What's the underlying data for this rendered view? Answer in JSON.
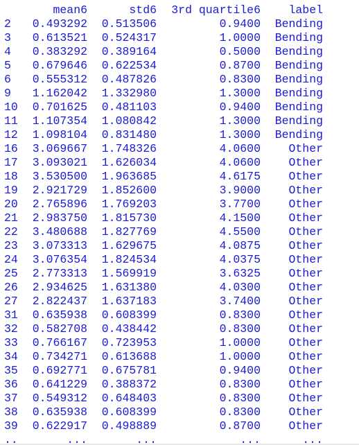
{
  "output": {
    "header": {
      "index": "",
      "mean6": "mean6",
      "std6": "std6",
      "q3": "3rd quartile6",
      "label": "label"
    },
    "rows": [
      {
        "index": "2",
        "mean6": "0.493292",
        "std6": "0.513506",
        "q3": "0.9400",
        "label": "Bending"
      },
      {
        "index": "3",
        "mean6": "0.613521",
        "std6": "0.524317",
        "q3": "1.0000",
        "label": "Bending"
      },
      {
        "index": "4",
        "mean6": "0.383292",
        "std6": "0.389164",
        "q3": "0.5000",
        "label": "Bending"
      },
      {
        "index": "5",
        "mean6": "0.679646",
        "std6": "0.622534",
        "q3": "0.8700",
        "label": "Bending"
      },
      {
        "index": "6",
        "mean6": "0.555312",
        "std6": "0.487826",
        "q3": "0.8300",
        "label": "Bending"
      },
      {
        "index": "9",
        "mean6": "1.162042",
        "std6": "1.332980",
        "q3": "1.3000",
        "label": "Bending"
      },
      {
        "index": "10",
        "mean6": "0.701625",
        "std6": "0.481103",
        "q3": "0.9400",
        "label": "Bending"
      },
      {
        "index": "11",
        "mean6": "1.107354",
        "std6": "1.080842",
        "q3": "1.3000",
        "label": "Bending"
      },
      {
        "index": "12",
        "mean6": "1.098104",
        "std6": "0.831480",
        "q3": "1.3000",
        "label": "Bending"
      },
      {
        "index": "16",
        "mean6": "3.069667",
        "std6": "1.748326",
        "q3": "4.0600",
        "label": "Other"
      },
      {
        "index": "17",
        "mean6": "3.093021",
        "std6": "1.626034",
        "q3": "4.0600",
        "label": "Other"
      },
      {
        "index": "18",
        "mean6": "3.530500",
        "std6": "1.963685",
        "q3": "4.6175",
        "label": "Other"
      },
      {
        "index": "19",
        "mean6": "2.921729",
        "std6": "1.852600",
        "q3": "3.9000",
        "label": "Other"
      },
      {
        "index": "20",
        "mean6": "2.765896",
        "std6": "1.769203",
        "q3": "3.7700",
        "label": "Other"
      },
      {
        "index": "21",
        "mean6": "2.983750",
        "std6": "1.815730",
        "q3": "4.1500",
        "label": "Other"
      },
      {
        "index": "22",
        "mean6": "3.480688",
        "std6": "1.827769",
        "q3": "4.5500",
        "label": "Other"
      },
      {
        "index": "23",
        "mean6": "3.073313",
        "std6": "1.629675",
        "q3": "4.0875",
        "label": "Other"
      },
      {
        "index": "24",
        "mean6": "3.076354",
        "std6": "1.824534",
        "q3": "4.0375",
        "label": "Other"
      },
      {
        "index": "25",
        "mean6": "2.773313",
        "std6": "1.569919",
        "q3": "3.6325",
        "label": "Other"
      },
      {
        "index": "26",
        "mean6": "2.934625",
        "std6": "1.631380",
        "q3": "4.0300",
        "label": "Other"
      },
      {
        "index": "27",
        "mean6": "2.822437",
        "std6": "1.637183",
        "q3": "3.7400",
        "label": "Other"
      },
      {
        "index": "31",
        "mean6": "0.635938",
        "std6": "0.608399",
        "q3": "0.8300",
        "label": "Other"
      },
      {
        "index": "32",
        "mean6": "0.582708",
        "std6": "0.438442",
        "q3": "0.8300",
        "label": "Other"
      },
      {
        "index": "33",
        "mean6": "0.766167",
        "std6": "0.723953",
        "q3": "1.0000",
        "label": "Other"
      },
      {
        "index": "34",
        "mean6": "0.734271",
        "std6": "0.613688",
        "q3": "1.0000",
        "label": "Other"
      },
      {
        "index": "35",
        "mean6": "0.692771",
        "std6": "0.675781",
        "q3": "0.9400",
        "label": "Other"
      },
      {
        "index": "36",
        "mean6": "0.641229",
        "std6": "0.388372",
        "q3": "0.8300",
        "label": "Other"
      },
      {
        "index": "37",
        "mean6": "0.549312",
        "std6": "0.648403",
        "q3": "0.8300",
        "label": "Other"
      },
      {
        "index": "38",
        "mean6": "0.635938",
        "std6": "0.608399",
        "q3": "0.8300",
        "label": "Other"
      },
      {
        "index": "39",
        "mean6": "0.622917",
        "std6": "0.498889",
        "q3": "0.8700",
        "label": "Other"
      }
    ],
    "ellipsis": {
      "index": "..",
      "mean6": "...",
      "std6": "...",
      "q3": "...",
      "label": "..."
    },
    "text_color": "#1a1ad6",
    "background_color": "#ffffff"
  }
}
